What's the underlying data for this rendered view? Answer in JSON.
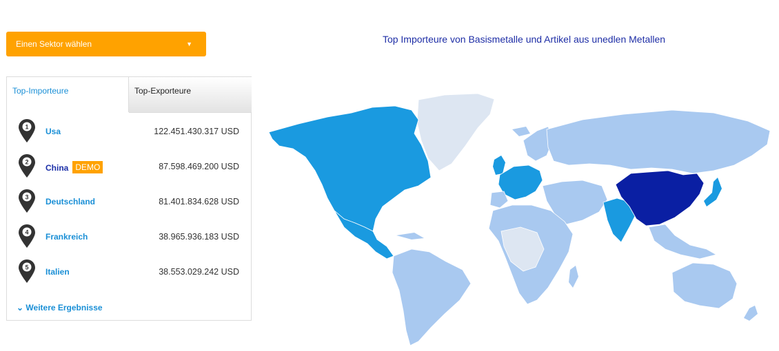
{
  "sector_button": {
    "label": "Einen Sektor wählen"
  },
  "tabs": [
    {
      "label": "Top-Importeure",
      "active": true
    },
    {
      "label": "Top-Exporteure",
      "active": false
    }
  ],
  "importers": [
    {
      "rank": "1",
      "name": "Usa",
      "value": "122.451.430.317 USD"
    },
    {
      "rank": "2",
      "name": "China",
      "badge": "DEMO",
      "value": "87.598.469.200 USD"
    },
    {
      "rank": "3",
      "name": "Deutschland",
      "value": "81.401.834.628 USD"
    },
    {
      "rank": "4",
      "name": "Frankreich",
      "value": "38.965.936.183 USD"
    },
    {
      "rank": "5",
      "name": "Italien",
      "value": "38.553.029.242 USD"
    }
  ],
  "more_link": "Weitere Ergebnisse",
  "map": {
    "title": "Top Importeure von Basismetalle und Artikel aus unedlen Metallen",
    "colors": {
      "top": "#0a1fa3",
      "high": "#1a9ae0",
      "mid": "#a9c9f0",
      "low": "#dde6f2"
    }
  },
  "colors": {
    "accent": "#ffa200",
    "link": "#1a8fd6"
  }
}
